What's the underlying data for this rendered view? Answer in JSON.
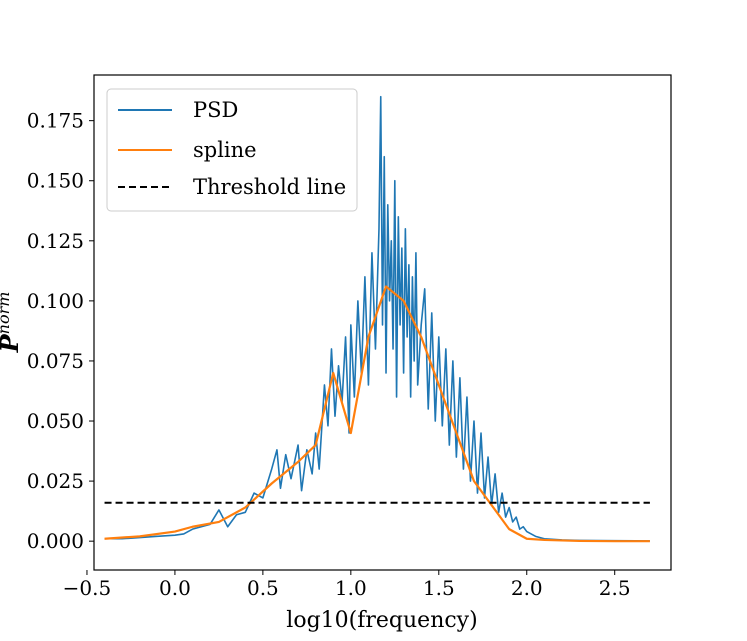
{
  "chart_data": {
    "type": "line",
    "title": "",
    "xlabel": "log10(frequency)",
    "ylabel": "P",
    "ylabel_superscript": "norm",
    "xlim": [
      -0.46,
      2.82
    ],
    "ylim": [
      -0.012,
      0.194
    ],
    "xticks": [
      -0.5,
      0.0,
      0.5,
      1.0,
      1.5,
      2.0,
      2.5
    ],
    "xtick_labels": [
      "−0.5",
      "0.0",
      "0.5",
      "1.0",
      "1.5",
      "2.0",
      "2.5"
    ],
    "yticks": [
      0.0,
      0.025,
      0.05,
      0.075,
      0.1,
      0.125,
      0.15,
      0.175
    ],
    "ytick_labels": [
      "0.000",
      "0.025",
      "0.050",
      "0.075",
      "0.100",
      "0.125",
      "0.150",
      "0.175"
    ],
    "legend_position": "top-left",
    "series": [
      {
        "name": "PSD",
        "color": "#1f77b4",
        "style": "solid",
        "x": [
          -0.4,
          -0.3,
          -0.2,
          -0.1,
          0.0,
          0.05,
          0.1,
          0.15,
          0.2,
          0.25,
          0.3,
          0.35,
          0.4,
          0.45,
          0.5,
          0.55,
          0.58,
          0.6,
          0.63,
          0.66,
          0.7,
          0.72,
          0.75,
          0.78,
          0.8,
          0.82,
          0.85,
          0.87,
          0.89,
          0.91,
          0.93,
          0.95,
          0.97,
          0.99,
          1.0,
          1.02,
          1.04,
          1.06,
          1.08,
          1.1,
          1.12,
          1.14,
          1.16,
          1.17,
          1.18,
          1.19,
          1.2,
          1.21,
          1.22,
          1.23,
          1.24,
          1.25,
          1.26,
          1.27,
          1.28,
          1.29,
          1.3,
          1.31,
          1.32,
          1.33,
          1.34,
          1.35,
          1.36,
          1.37,
          1.38,
          1.4,
          1.42,
          1.44,
          1.46,
          1.48,
          1.5,
          1.52,
          1.54,
          1.56,
          1.58,
          1.6,
          1.62,
          1.64,
          1.66,
          1.68,
          1.7,
          1.72,
          1.74,
          1.76,
          1.78,
          1.8,
          1.82,
          1.84,
          1.86,
          1.88,
          1.9,
          1.92,
          1.94,
          1.96,
          1.98,
          2.0,
          2.05,
          2.1,
          2.2,
          2.3,
          2.5,
          2.7
        ],
        "y": [
          0.001,
          0.001,
          0.0015,
          0.002,
          0.0025,
          0.003,
          0.005,
          0.006,
          0.007,
          0.013,
          0.006,
          0.011,
          0.012,
          0.02,
          0.018,
          0.03,
          0.038,
          0.022,
          0.036,
          0.026,
          0.04,
          0.021,
          0.038,
          0.028,
          0.045,
          0.03,
          0.065,
          0.048,
          0.08,
          0.052,
          0.073,
          0.058,
          0.085,
          0.045,
          0.09,
          0.06,
          0.1,
          0.07,
          0.11,
          0.065,
          0.12,
          0.08,
          0.13,
          0.185,
          0.09,
          0.16,
          0.07,
          0.14,
          0.1,
          0.125,
          0.08,
          0.15,
          0.06,
          0.135,
          0.09,
          0.122,
          0.07,
          0.13,
          0.085,
          0.115,
          0.06,
          0.11,
          0.075,
          0.12,
          0.065,
          0.09,
          0.105,
          0.055,
          0.095,
          0.05,
          0.085,
          0.048,
          0.08,
          0.04,
          0.075,
          0.035,
          0.068,
          0.03,
          0.06,
          0.025,
          0.05,
          0.02,
          0.045,
          0.018,
          0.035,
          0.015,
          0.028,
          0.012,
          0.02,
          0.01,
          0.014,
          0.008,
          0.01,
          0.005,
          0.006,
          0.004,
          0.002,
          0.001,
          0.0005,
          0.0003,
          0.0002,
          0.0001
        ]
      },
      {
        "name": "spline",
        "color": "#ff7f0e",
        "style": "solid",
        "x": [
          -0.4,
          -0.2,
          0.0,
          0.1,
          0.25,
          0.4,
          0.55,
          0.7,
          0.8,
          0.9,
          1.0,
          1.1,
          1.2,
          1.3,
          1.4,
          1.5,
          1.6,
          1.7,
          1.8,
          1.9,
          2.0,
          2.1,
          2.3,
          2.5,
          2.7
        ],
        "y": [
          0.001,
          0.002,
          0.004,
          0.006,
          0.008,
          0.014,
          0.024,
          0.033,
          0.04,
          0.07,
          0.045,
          0.085,
          0.106,
          0.1,
          0.085,
          0.065,
          0.045,
          0.025,
          0.015,
          0.005,
          0.001,
          0.0005,
          0.0001,
          0.0,
          0.0
        ]
      },
      {
        "name": "Threshold line",
        "color": "#000000",
        "style": "dashed",
        "x": [
          -0.4,
          2.7
        ],
        "y": [
          0.016,
          0.016
        ]
      }
    ]
  }
}
